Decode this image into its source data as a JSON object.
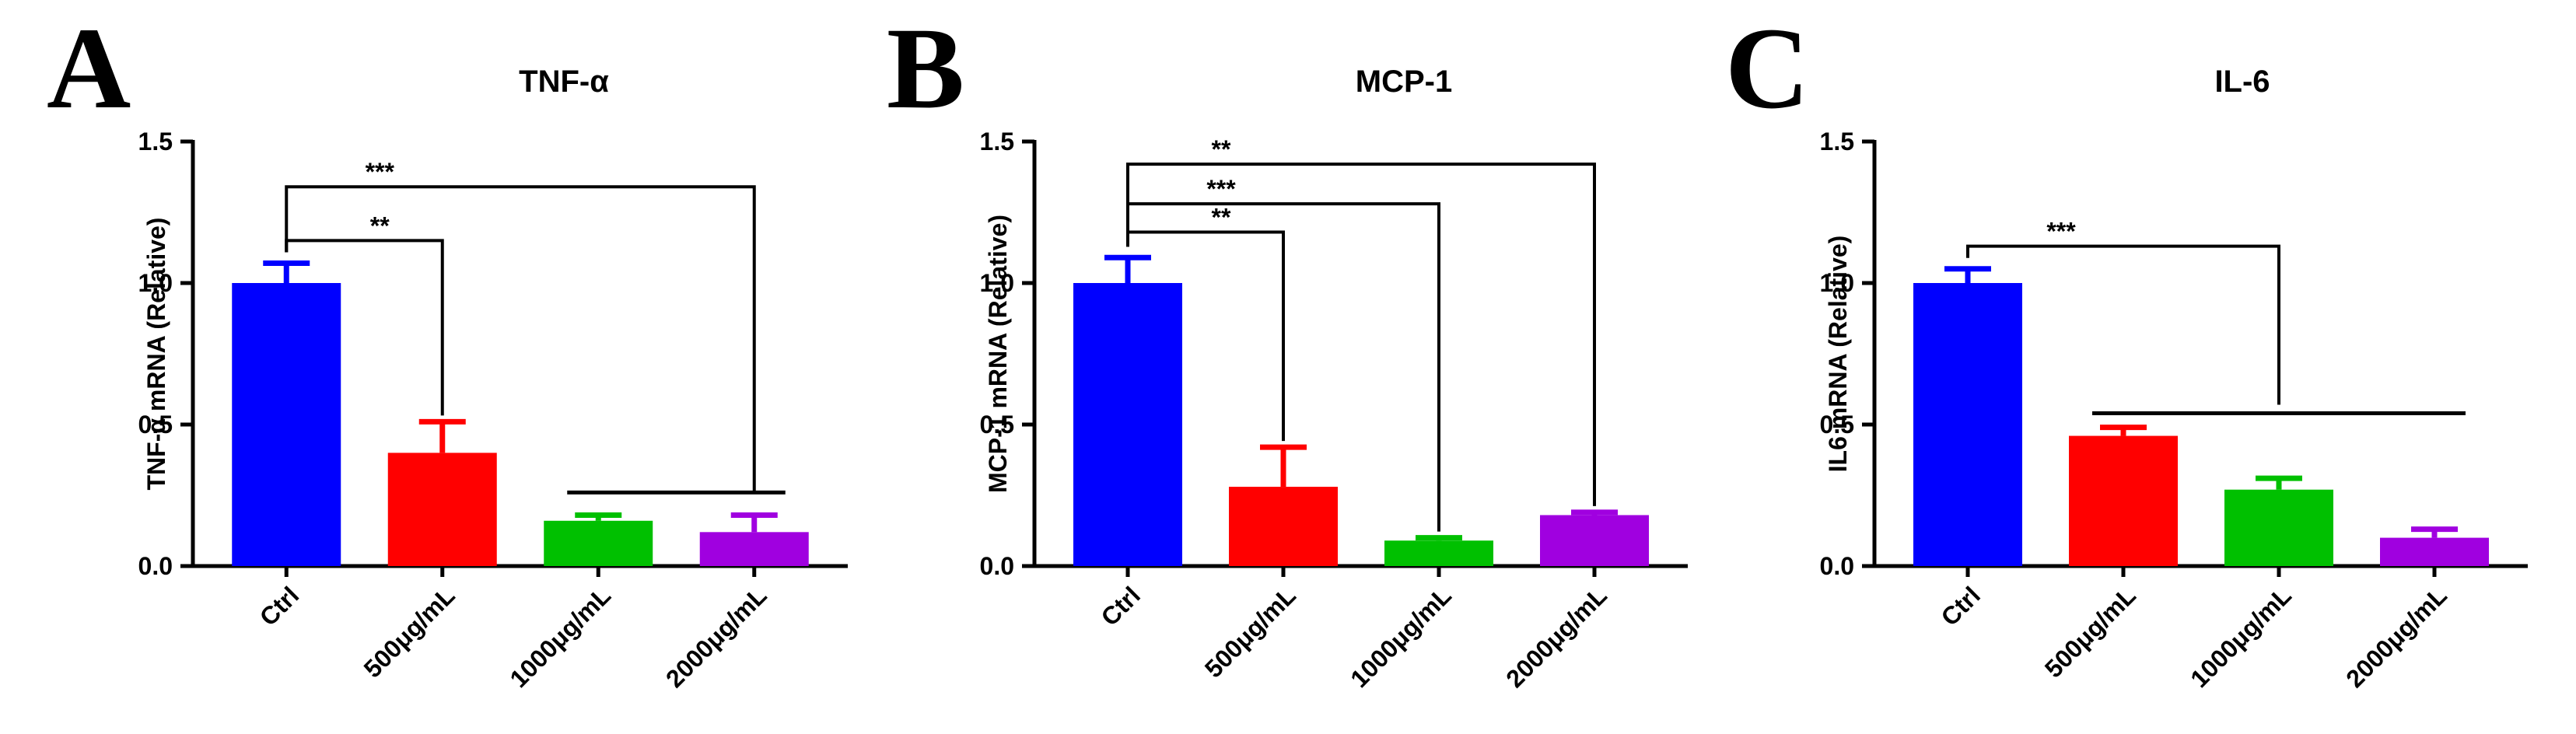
{
  "chart_data": [
    {
      "type": "bar",
      "panel_label": "A",
      "title": "TNF-α",
      "ylabel": "TNF-α mRNA (Relative)",
      "ylim": [
        0,
        1.5
      ],
      "yticks": [
        0.0,
        0.5,
        1.0,
        1.5
      ],
      "ytick_labels": [
        "0.0",
        "0.5",
        "1.0",
        "1.5"
      ],
      "categories": [
        "Ctrl",
        "500μg/mL",
        "1000μg/mL",
        "2000μg/mL"
      ],
      "values": [
        1.0,
        0.4,
        0.16,
        0.12
      ],
      "errors": [
        0.07,
        0.11,
        0.02,
        0.06
      ],
      "colors": [
        "#0000ff",
        "#ff0000",
        "#00c000",
        "#a000e0"
      ],
      "brackets": [
        {
          "from": 0,
          "to": 1,
          "label": "**",
          "y": 1.15
        },
        {
          "from": 0,
          "to": 3,
          "label": "***",
          "y": 1.34,
          "drop_to": 0.26
        }
      ],
      "lines": [
        {
          "from": 2,
          "to": 3,
          "y": 0.26
        }
      ],
      "grid": false
    },
    {
      "type": "bar",
      "panel_label": "B",
      "title": "MCP-1",
      "ylabel": "MCP-1 mRNA (Relative)",
      "ylim": [
        0,
        1.5
      ],
      "yticks": [
        0.0,
        0.5,
        1.0,
        1.5
      ],
      "ytick_labels": [
        "0.0",
        "0.5",
        "1.0",
        "1.5"
      ],
      "categories": [
        "Ctrl",
        "500μg/mL",
        "1000μg/mL",
        "2000μg/mL"
      ],
      "values": [
        1.0,
        0.28,
        0.09,
        0.18
      ],
      "errors": [
        0.09,
        0.14,
        0.01,
        0.01
      ],
      "colors": [
        "#0000ff",
        "#ff0000",
        "#00c000",
        "#a000e0"
      ],
      "brackets": [
        {
          "from": 0,
          "to": 1,
          "label": "**",
          "y": 1.18
        },
        {
          "from": 0,
          "to": 2,
          "label": "***",
          "y": 1.28
        },
        {
          "from": 0,
          "to": 3,
          "label": "**",
          "y": 1.42
        }
      ],
      "lines": [],
      "grid": false
    },
    {
      "type": "bar",
      "panel_label": "C",
      "title": "IL-6",
      "ylabel": "IL6 mRNA (Relative)",
      "ylim": [
        0,
        1.5
      ],
      "yticks": [
        0.0,
        0.5,
        1.0,
        1.5
      ],
      "ytick_labels": [
        "0.0",
        "0.5",
        "1.0",
        "1.5"
      ],
      "categories": [
        "Ctrl",
        "500μg/mL",
        "1000μg/mL",
        "2000μg/mL"
      ],
      "values": [
        1.0,
        0.46,
        0.27,
        0.1
      ],
      "errors": [
        0.05,
        0.03,
        0.04,
        0.03
      ],
      "colors": [
        "#0000ff",
        "#ff0000",
        "#00c000",
        "#a000e0"
      ],
      "brackets": [
        {
          "from": 0,
          "to": 2,
          "label": "***",
          "y": 1.13,
          "drop_to": 0.57
        }
      ],
      "lines": [
        {
          "from": 1,
          "to": 3,
          "y": 0.54
        }
      ],
      "grid": false
    }
  ]
}
